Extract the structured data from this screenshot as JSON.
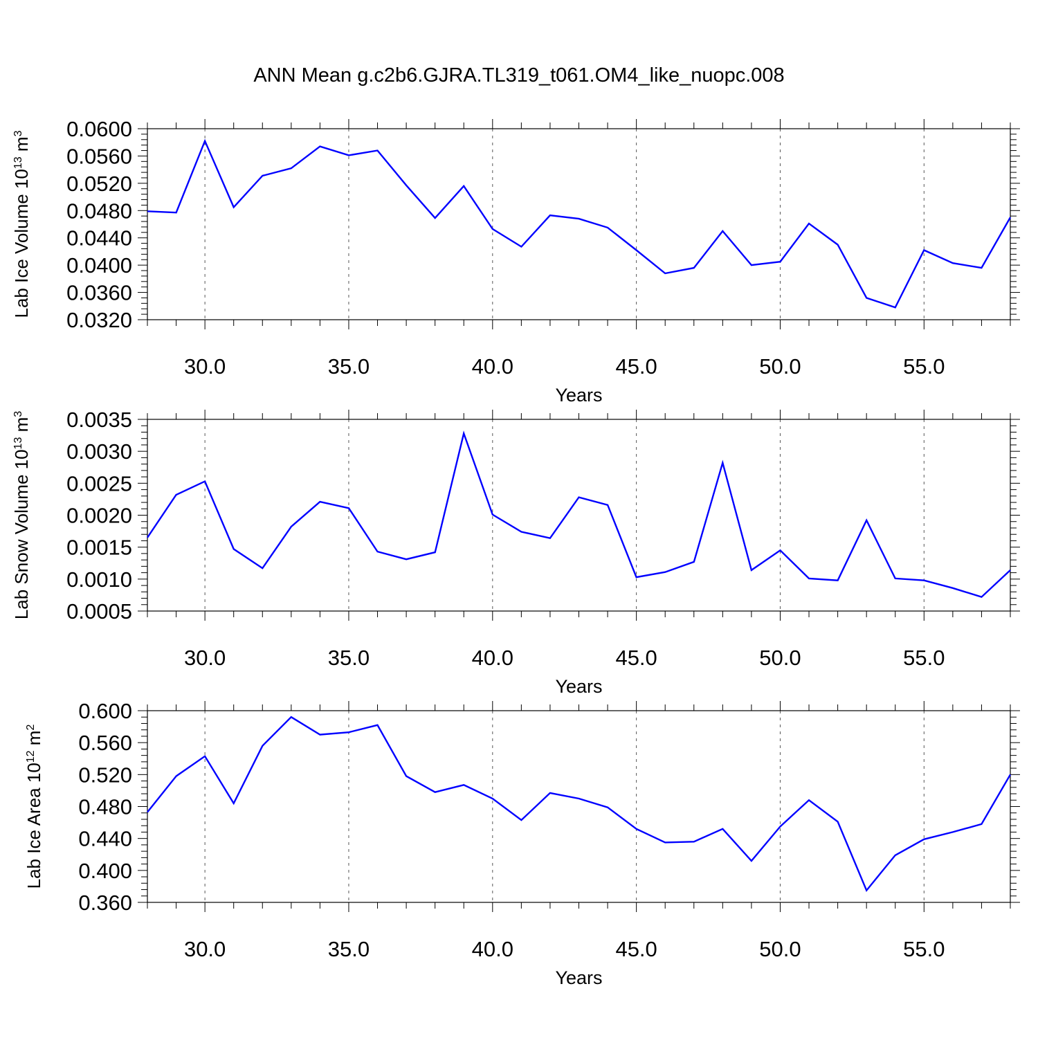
{
  "title": "ANN Mean g.c2b6.GJRA.TL319_t061.OM4_like_nuopc.008",
  "colors": {
    "line": "#0000ff",
    "axis": "#000000",
    "grid": "#555555"
  },
  "chart_data": [
    {
      "type": "line",
      "xlabel": "Years",
      "ylabel": {
        "text": "Lab Ice Volume 10",
        "exp": "13",
        "unit": " m",
        "unit_exp": "3"
      },
      "xlim": [
        28,
        58
      ],
      "ylim": [
        0.032,
        0.06
      ],
      "x_ticks": [
        30,
        35,
        40,
        45,
        50,
        55
      ],
      "x_tick_labels": [
        "30.0",
        "35.0",
        "40.0",
        "45.0",
        "50.0",
        "55.0"
      ],
      "y_ticks": [
        0.032,
        0.036,
        0.04,
        0.044,
        0.048,
        0.052,
        0.056,
        0.06
      ],
      "y_tick_labels": [
        "0.0320",
        "0.0360",
        "0.0400",
        "0.0440",
        "0.0480",
        "0.0520",
        "0.0560",
        "0.0600"
      ],
      "x": [
        28,
        29,
        30,
        31,
        32,
        33,
        34,
        35,
        36,
        37,
        38,
        39,
        40,
        41,
        42,
        43,
        44,
        45,
        46,
        47,
        48,
        49,
        50,
        51,
        52,
        53,
        54,
        55,
        56,
        57,
        58
      ],
      "y": [
        0.0479,
        0.0477,
        0.0582,
        0.0485,
        0.0531,
        0.0542,
        0.0574,
        0.0561,
        0.0568,
        0.0517,
        0.0469,
        0.0516,
        0.0453,
        0.0427,
        0.0473,
        0.0468,
        0.0455,
        0.0422,
        0.0388,
        0.0396,
        0.045,
        0.04,
        0.0405,
        0.0461,
        0.043,
        0.0352,
        0.0338,
        0.0422,
        0.0403,
        0.0396,
        0.047
      ]
    },
    {
      "type": "line",
      "xlabel": "Years",
      "ylabel": {
        "text": "Lab Snow Volume 10",
        "exp": "13",
        "unit": " m",
        "unit_exp": "3"
      },
      "xlim": [
        28,
        58
      ],
      "ylim": [
        0.0005,
        0.0035
      ],
      "x_ticks": [
        30,
        35,
        40,
        45,
        50,
        55
      ],
      "x_tick_labels": [
        "30.0",
        "35.0",
        "40.0",
        "45.0",
        "50.0",
        "55.0"
      ],
      "y_ticks": [
        0.0005,
        0.001,
        0.0015,
        0.002,
        0.0025,
        0.003,
        0.0035
      ],
      "y_tick_labels": [
        "0.0005",
        "0.0010",
        "0.0015",
        "0.0020",
        "0.0025",
        "0.0030",
        "0.0035"
      ],
      "x": [
        28,
        29,
        30,
        31,
        32,
        33,
        34,
        35,
        36,
        37,
        38,
        39,
        40,
        41,
        42,
        43,
        44,
        45,
        46,
        47,
        48,
        49,
        50,
        51,
        52,
        53,
        54,
        55,
        56,
        57,
        58
      ],
      "y": [
        0.00165,
        0.00232,
        0.00253,
        0.00147,
        0.00117,
        0.00182,
        0.00221,
        0.00211,
        0.00143,
        0.00131,
        0.00142,
        0.00328,
        0.00201,
        0.00174,
        0.00164,
        0.00228,
        0.00216,
        0.00103,
        0.00111,
        0.00127,
        0.00282,
        0.00114,
        0.00145,
        0.00101,
        0.00098,
        0.00192,
        0.00101,
        0.00098,
        0.00086,
        0.00072,
        0.00114
      ]
    },
    {
      "type": "line",
      "xlabel": "Years",
      "ylabel": {
        "text": "Lab Ice Area 10",
        "exp": "12",
        "unit": " m",
        "unit_exp": "2"
      },
      "xlim": [
        28,
        58
      ],
      "ylim": [
        0.36,
        0.6
      ],
      "x_ticks": [
        30,
        35,
        40,
        45,
        50,
        55
      ],
      "x_tick_labels": [
        "30.0",
        "35.0",
        "40.0",
        "45.0",
        "50.0",
        "55.0"
      ],
      "y_ticks": [
        0.36,
        0.4,
        0.44,
        0.48,
        0.52,
        0.56,
        0.6
      ],
      "y_tick_labels": [
        "0.360",
        "0.400",
        "0.440",
        "0.480",
        "0.520",
        "0.560",
        "0.600"
      ],
      "x": [
        28,
        29,
        30,
        31,
        32,
        33,
        34,
        35,
        36,
        37,
        38,
        39,
        40,
        41,
        42,
        43,
        44,
        45,
        46,
        47,
        48,
        49,
        50,
        51,
        52,
        53,
        54,
        55,
        56,
        57,
        58
      ],
      "y": [
        0.473,
        0.518,
        0.543,
        0.484,
        0.556,
        0.592,
        0.57,
        0.573,
        0.582,
        0.518,
        0.498,
        0.507,
        0.49,
        0.463,
        0.497,
        0.49,
        0.479,
        0.452,
        0.435,
        0.436,
        0.452,
        0.412,
        0.455,
        0.488,
        0.461,
        0.375,
        0.419,
        0.439,
        0.448,
        0.458,
        0.52
      ]
    }
  ]
}
